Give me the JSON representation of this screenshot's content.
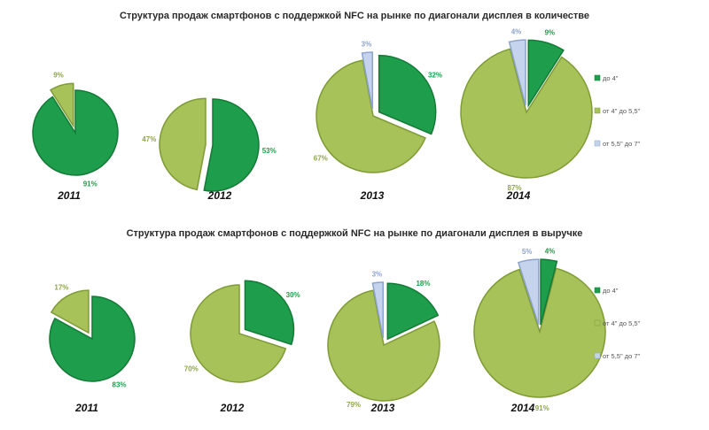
{
  "legend": [
    {
      "label": "до 4\"",
      "color": "#1e9e4c"
    },
    {
      "label": "от 4\" до 5,5\"",
      "color": "#a8c25a"
    },
    {
      "label": "от 5,5\" до 7\"",
      "color": "#c5d3ec"
    }
  ],
  "chart_data": [
    {
      "type": "pie",
      "title": "Структура продаж смартфонов с поддержкой NFC на рынке по диагонали дисплея в количестве",
      "categories": [
        "до 4\"",
        "от 4\" до 5,5\"",
        "от 5,5\" до 7\""
      ],
      "pies": [
        {
          "year": "2011",
          "values": [
            91,
            9,
            null
          ],
          "labels": [
            "91%",
            "9%",
            ""
          ]
        },
        {
          "year": "2012",
          "values": [
            53,
            47,
            null
          ],
          "labels": [
            "53%",
            "47%",
            ""
          ]
        },
        {
          "year": "2013",
          "values": [
            32,
            67,
            3
          ],
          "labels": [
            "32%",
            "67%",
            "3%"
          ]
        },
        {
          "year": "2014",
          "values": [
            9,
            87,
            4
          ],
          "labels": [
            "9%",
            "87%",
            "4%"
          ]
        }
      ],
      "legend_position": "right"
    },
    {
      "type": "pie",
      "title": "Структура продаж смартфонов с поддержкой NFC на рынке по диагонали дисплея в выручке",
      "categories": [
        "до 4\"",
        "от 4\" до 5,5\"",
        "от 5,5\" до 7\""
      ],
      "pies": [
        {
          "year": "2011",
          "values": [
            83,
            17,
            null
          ],
          "labels": [
            "83%",
            "17%",
            ""
          ]
        },
        {
          "year": "2012",
          "values": [
            30,
            70,
            null
          ],
          "labels": [
            "30%",
            "70%",
            ""
          ]
        },
        {
          "year": "2013",
          "values": [
            18,
            79,
            3
          ],
          "labels": [
            "18%",
            "79%",
            "3%"
          ]
        },
        {
          "year": "2014",
          "values": [
            4,
            91,
            5
          ],
          "labels": [
            "4%",
            "91%",
            "5%"
          ]
        }
      ],
      "legend_position": "right"
    }
  ]
}
